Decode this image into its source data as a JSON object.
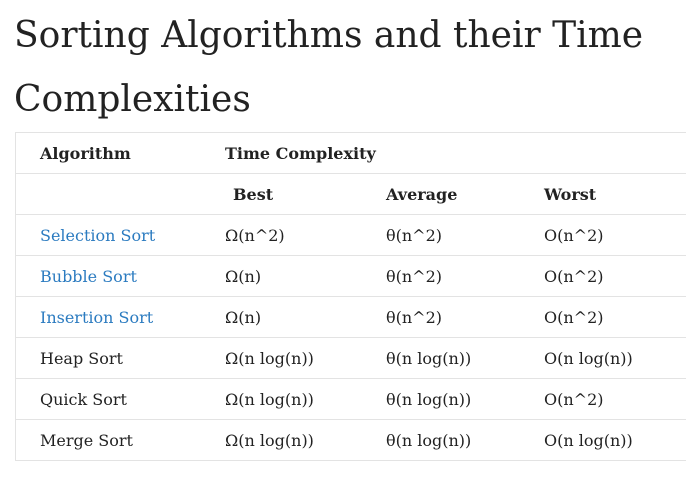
{
  "title": "Sorting Algorithms and their Time Complexities",
  "table": {
    "header_row1": {
      "algorithm": "Algorithm",
      "time_complexity": "Time Complexity"
    },
    "header_row2": {
      "best": "Best",
      "average": "Average",
      "worst": "Worst"
    },
    "rows": [
      {
        "name": "Selection Sort",
        "link": true,
        "best": "Ω(n^2)",
        "average": "θ(n^2)",
        "worst": "O(n^2)"
      },
      {
        "name": "Bubble Sort",
        "link": true,
        "best": "Ω(n)",
        "average": "θ(n^2)",
        "worst": "O(n^2)"
      },
      {
        "name": "Insertion Sort",
        "link": true,
        "best": "Ω(n)",
        "average": "θ(n^2)",
        "worst": "O(n^2)"
      },
      {
        "name": "Heap Sort",
        "link": false,
        "best": "Ω(n log(n))",
        "average": "θ(n log(n))",
        "worst": "O(n log(n))"
      },
      {
        "name": "Quick Sort",
        "link": false,
        "best": "Ω(n log(n))",
        "average": "θ(n log(n))",
        "worst": "O(n^2)"
      },
      {
        "name": "Merge Sort",
        "link": false,
        "best": "Ω(n log(n))",
        "average": "θ(n log(n))",
        "worst": "O(n log(n))"
      }
    ]
  },
  "colors": {
    "link": "#2b7bc0",
    "text": "#222222",
    "border": "#e3e3e3"
  }
}
